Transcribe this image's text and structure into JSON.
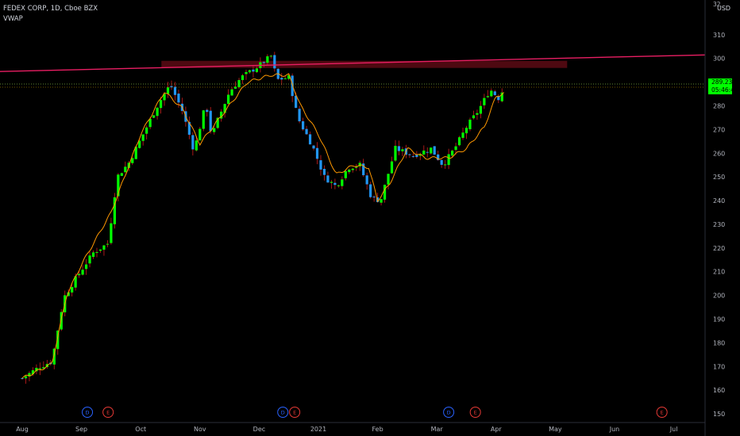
{
  "header": {
    "symbol_line": "FEDEX CORP, 1D, Cboe BZX",
    "indicator": "VWAP"
  },
  "price_axis": {
    "currency": "USD",
    "last_price": "289.23",
    "countdown": "05:46:44",
    "top_label": "32"
  },
  "colors": {
    "background": "#000000",
    "up": "#00ff00",
    "down": "#2196f3",
    "wick": "#b71c1c",
    "vwap": "#ff9800",
    "trendline": "#e91e63",
    "resistance_zone": "#5c0a14",
    "price_tag": "#00ff00"
  },
  "events": [
    {
      "type": "D",
      "month_pos": 1.1,
      "color": "#2962ff"
    },
    {
      "type": "E",
      "month_pos": 1.45,
      "color": "#e53935"
    },
    {
      "type": "D",
      "month_pos": 4.4,
      "color": "#2962ff"
    },
    {
      "type": "E",
      "month_pos": 4.6,
      "color": "#e53935"
    },
    {
      "type": "D",
      "month_pos": 7.2,
      "color": "#2962ff"
    },
    {
      "type": "E",
      "month_pos": 7.65,
      "color": "#e53935"
    },
    {
      "type": "E",
      "month_pos": 10.8,
      "color": "#e53935"
    }
  ],
  "chart_data": {
    "type": "candlestick",
    "title": "FEDEX CORP, 1D, Cboe BZX",
    "x_labels": [
      "Aug",
      "Sep",
      "Oct",
      "Nov",
      "Dec",
      "2021",
      "Feb",
      "Mar",
      "Apr",
      "May",
      "Jun",
      "Jul"
    ],
    "y_ticks": [
      150,
      160,
      170,
      180,
      190,
      200,
      210,
      220,
      230,
      240,
      250,
      260,
      270,
      280,
      290,
      300,
      310
    ],
    "ylim": [
      148,
      322
    ],
    "grid": false,
    "series": [
      {
        "name": "VWAP",
        "type": "line",
        "anchors": [
          [
            0,
            165
          ],
          [
            0.5,
            171
          ],
          [
            0.75,
            200
          ],
          [
            1.0,
            213
          ],
          [
            1.5,
            235
          ],
          [
            2.0,
            268
          ],
          [
            2.4,
            286
          ],
          [
            2.7,
            279
          ],
          [
            3.0,
            264
          ],
          [
            3.4,
            277
          ],
          [
            3.8,
            290
          ],
          [
            4.2,
            293
          ],
          [
            4.5,
            293
          ],
          [
            4.7,
            280
          ],
          [
            5.0,
            268
          ],
          [
            5.3,
            251
          ],
          [
            5.6,
            255
          ],
          [
            5.85,
            254
          ],
          [
            6.0,
            240
          ],
          [
            6.2,
            247
          ],
          [
            6.5,
            262
          ],
          [
            6.8,
            258
          ],
          [
            7.2,
            258
          ],
          [
            7.5,
            262
          ],
          [
            7.8,
            271
          ],
          [
            8.0,
            284
          ],
          [
            8.2,
            286
          ]
        ]
      }
    ],
    "candles_anchors": [
      [
        0,
        165
      ],
      [
        0.3,
        170
      ],
      [
        0.5,
        172
      ],
      [
        0.7,
        199
      ],
      [
        0.9,
        207
      ],
      [
        1.2,
        218
      ],
      [
        1.45,
        222
      ],
      [
        1.6,
        250
      ],
      [
        1.8,
        256
      ],
      [
        2.0,
        266
      ],
      [
        2.3,
        281
      ],
      [
        2.5,
        289
      ],
      [
        2.7,
        278
      ],
      [
        2.9,
        261
      ],
      [
        3.1,
        281
      ],
      [
        3.2,
        267
      ],
      [
        3.3,
        274
      ],
      [
        3.5,
        286
      ],
      [
        3.7,
        292
      ],
      [
        4.0,
        297
      ],
      [
        4.2,
        301
      ],
      [
        4.3,
        291
      ],
      [
        4.5,
        292
      ],
      [
        4.65,
        275
      ],
      [
        4.9,
        263
      ],
      [
        5.1,
        250
      ],
      [
        5.3,
        246
      ],
      [
        5.5,
        254
      ],
      [
        5.7,
        255
      ],
      [
        5.9,
        241
      ],
      [
        6.05,
        240
      ],
      [
        6.3,
        262
      ],
      [
        6.6,
        259
      ],
      [
        6.9,
        262
      ],
      [
        7.1,
        255
      ],
      [
        7.3,
        262
      ],
      [
        7.5,
        271
      ],
      [
        7.7,
        278
      ],
      [
        7.9,
        287
      ],
      [
        8.05,
        283
      ],
      [
        8.15,
        289
      ]
    ],
    "annotations": [
      {
        "type": "trendline",
        "from": [
          0,
          294.5
        ],
        "to": [
          11.5,
          301.5
        ]
      },
      {
        "type": "zone",
        "x": [
          2.35,
          9.2
        ],
        "y": [
          296,
          299
        ]
      },
      {
        "type": "horizontal_line",
        "y": 289.2,
        "style": "dotted"
      }
    ]
  }
}
